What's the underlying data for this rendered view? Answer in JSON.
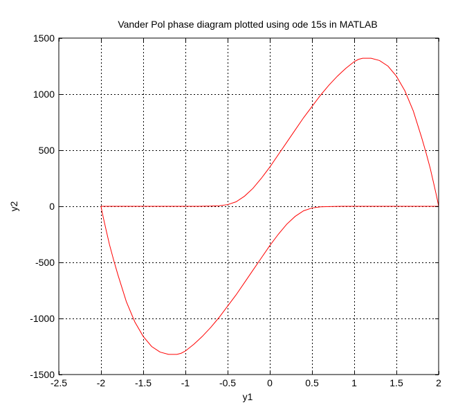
{
  "chart_data": {
    "type": "line",
    "title": "Vander Pol phase diagram plotted using ode 15s in MATLAB",
    "xlabel": "y1",
    "ylabel": "y2",
    "xlim": [
      -2.5,
      2
    ],
    "ylim": [
      -1500,
      1500
    ],
    "xticks": [
      -2.5,
      -2,
      -1.5,
      -1,
      -0.5,
      0,
      0.5,
      1,
      1.5,
      2
    ],
    "yticks": [
      -1500,
      -1000,
      -500,
      0,
      500,
      1000,
      1500
    ],
    "xtick_labels": [
      "-2.5",
      "-2",
      "-1.5",
      "-1",
      "-0.5",
      "0",
      "0.5",
      "1",
      "1.5",
      "2"
    ],
    "ytick_labels": [
      "-1500",
      "-1000",
      "-500",
      "0",
      "500",
      "1000",
      "1500"
    ],
    "grid": true,
    "grid_style": "dotted",
    "line_color": "#ff0000",
    "series": [
      {
        "x": [
          2.0,
          1.99,
          1.97,
          1.94,
          1.9,
          1.85,
          1.8,
          1.7,
          1.6,
          1.5,
          1.4,
          1.3,
          1.2,
          1.1,
          1.05,
          1.0,
          0.95,
          0.9,
          0.85,
          0.8,
          0.7,
          0.6,
          0.5,
          0.4,
          0.3,
          0.2,
          0.1,
          0.0,
          -0.1,
          -0.2,
          -0.3,
          -0.4,
          -0.5,
          -0.6,
          -0.7,
          -0.8,
          -0.85,
          -0.9,
          -0.95,
          -1.0,
          -1.1,
          -1.2,
          -1.3,
          -1.4,
          -1.5,
          -1.6,
          -1.7,
          -1.8,
          -1.9,
          -1.95,
          -2.0,
          -1.99,
          -1.97,
          -1.94,
          -1.9,
          -1.85,
          -1.8,
          -1.7,
          -1.6,
          -1.5,
          -1.4,
          -1.3,
          -1.2,
          -1.1,
          -1.05,
          -1.0,
          -0.95,
          -0.9,
          -0.85,
          -0.8,
          -0.7,
          -0.6,
          -0.5,
          -0.4,
          -0.3,
          -0.2,
          -0.1,
          0.0,
          0.1,
          0.2,
          0.3,
          0.4,
          0.5,
          0.6,
          0.7,
          0.8,
          0.85,
          0.9,
          0.95,
          1.0,
          1.1,
          1.2,
          1.3,
          1.4,
          1.5,
          1.6,
          1.7,
          1.8,
          1.9,
          1.95,
          2.0
        ],
        "y": [
          0,
          40,
          110,
          210,
          340,
          480,
          610,
          850,
          1030,
          1160,
          1250,
          1300,
          1320,
          1320,
          1310,
          1290,
          1260,
          1230,
          1195,
          1160,
          1080,
          990,
          890,
          790,
          680,
          570,
          460,
          350,
          250,
          160,
          90,
          40,
          15,
          5,
          2,
          1,
          0,
          0,
          0,
          0,
          0,
          0,
          0,
          0,
          0,
          0,
          0,
          0,
          0,
          0,
          0,
          -40,
          -110,
          -210,
          -340,
          -480,
          -610,
          -850,
          -1030,
          -1160,
          -1250,
          -1300,
          -1320,
          -1320,
          -1310,
          -1290,
          -1260,
          -1230,
          -1195,
          -1160,
          -1080,
          -990,
          -890,
          -790,
          -680,
          -570,
          -460,
          -350,
          -250,
          -160,
          -90,
          -40,
          -15,
          -5,
          -2,
          -1,
          0,
          0,
          0,
          0,
          0,
          0,
          0,
          0,
          0,
          0,
          0,
          0,
          0,
          0,
          0
        ]
      }
    ]
  }
}
